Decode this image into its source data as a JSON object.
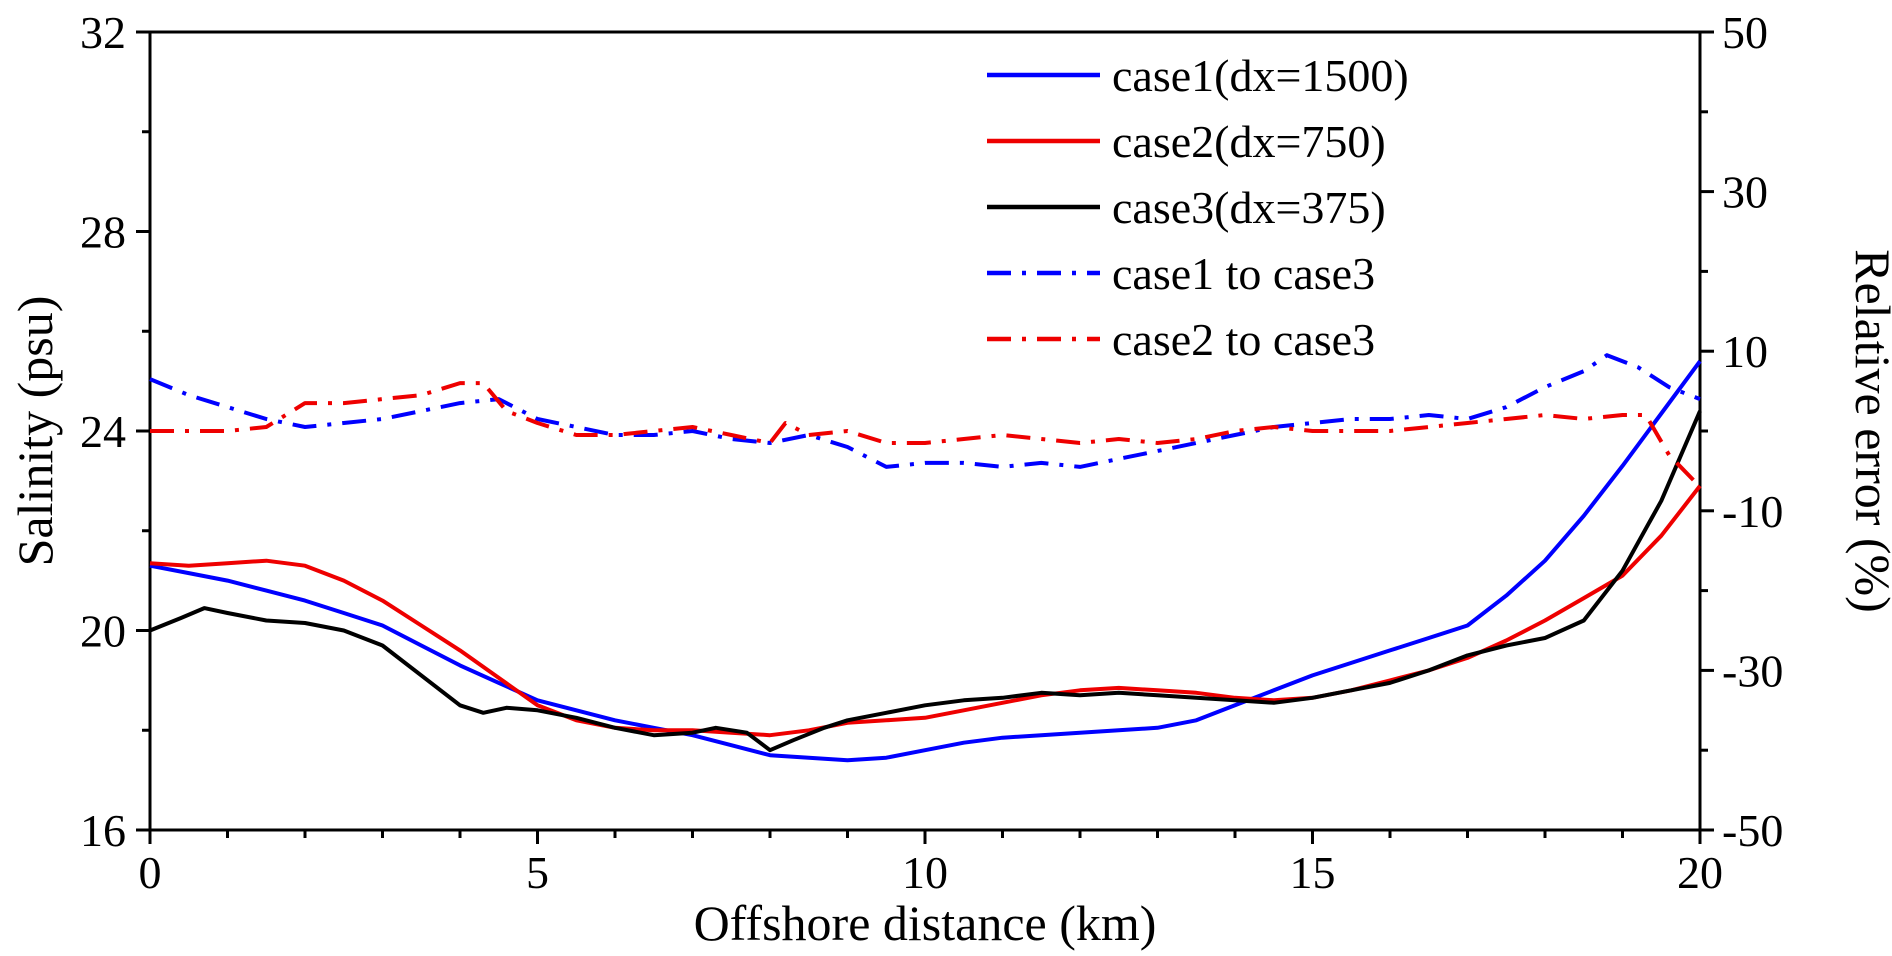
{
  "figure": {
    "background": "#ffffff",
    "border_color": "#000000"
  },
  "chart_data": {
    "type": "line",
    "title": "",
    "xlabel": "Offshore distance (km)",
    "ylabel_left": "Salinity (psu)",
    "ylabel_right": "Relative error (%)",
    "xlim": [
      0,
      20
    ],
    "ylim_left": [
      16,
      32
    ],
    "ylim_right": [
      -50,
      50
    ],
    "xticks": [
      0,
      5,
      10,
      15,
      20
    ],
    "xticks_minor": [
      1,
      2,
      3,
      4,
      6,
      7,
      8,
      9,
      11,
      12,
      13,
      14,
      16,
      17,
      18,
      19
    ],
    "yticks_left": [
      16,
      20,
      24,
      28,
      32
    ],
    "yticks_left_minor": [
      18,
      22,
      26,
      30
    ],
    "yticks_right": [
      -50,
      -30,
      -10,
      10,
      30,
      50
    ],
    "yticks_right_minor": [
      -40,
      -20,
      0,
      20,
      40
    ],
    "grid": false,
    "legend_position": "inside-top-center-right",
    "series": [
      {
        "name": "case1(dx=1500)",
        "axis": "left",
        "color": "#0000ff",
        "style": "solid",
        "x": [
          0,
          0.5,
          1,
          1.5,
          2,
          2.5,
          3,
          3.5,
          4,
          4.5,
          5,
          5.5,
          6,
          6.5,
          7,
          7.5,
          8,
          8.5,
          9,
          9.5,
          10,
          10.5,
          11,
          11.5,
          12,
          12.5,
          13,
          13.5,
          14,
          14.5,
          15,
          15.5,
          16,
          16.5,
          17,
          17.5,
          18,
          18.5,
          19,
          19.5,
          20
        ],
        "y": [
          21.3,
          21.15,
          21.0,
          20.8,
          20.6,
          20.35,
          20.1,
          19.7,
          19.3,
          18.95,
          18.6,
          18.4,
          18.2,
          18.05,
          17.9,
          17.7,
          17.5,
          17.45,
          17.4,
          17.45,
          17.6,
          17.75,
          17.85,
          17.9,
          17.95,
          18.0,
          18.05,
          18.2,
          18.5,
          18.8,
          19.1,
          19.35,
          19.6,
          19.85,
          20.1,
          20.7,
          21.4,
          22.3,
          23.3,
          24.35,
          25.4
        ]
      },
      {
        "name": "case2(dx=750)",
        "axis": "left",
        "color": "#ee0000",
        "style": "solid",
        "x": [
          0,
          0.5,
          1,
          1.5,
          2,
          2.5,
          3,
          3.5,
          4,
          4.5,
          5,
          5.5,
          6,
          6.5,
          7,
          7.5,
          8,
          8.5,
          9,
          9.5,
          10,
          10.5,
          11,
          11.5,
          12,
          12.5,
          13,
          13.5,
          14,
          14.5,
          15,
          15.5,
          16,
          16.5,
          17,
          17.5,
          18,
          18.5,
          19,
          19.5,
          20
        ],
        "y": [
          21.35,
          21.3,
          21.35,
          21.4,
          21.3,
          21.0,
          20.6,
          20.1,
          19.6,
          19.05,
          18.5,
          18.2,
          18.05,
          18.0,
          18.0,
          17.95,
          17.9,
          18.0,
          18.15,
          18.2,
          18.25,
          18.4,
          18.55,
          18.7,
          18.8,
          18.85,
          18.8,
          18.75,
          18.65,
          18.6,
          18.65,
          18.8,
          19.0,
          19.2,
          19.45,
          19.8,
          20.2,
          20.65,
          21.1,
          21.9,
          22.9
        ]
      },
      {
        "name": "case3(dx=375)",
        "axis": "left",
        "color": "#000000",
        "style": "solid",
        "x": [
          0,
          0.4,
          0.7,
          1,
          1.5,
          2,
          2.5,
          3,
          3.5,
          4,
          4.3,
          4.6,
          5,
          5.5,
          6,
          6.5,
          7,
          7.3,
          7.7,
          8,
          8.3,
          8.7,
          9,
          9.5,
          10,
          10.5,
          11,
          11.5,
          12,
          12.5,
          13,
          13.5,
          14,
          14.5,
          15,
          15.5,
          16,
          16.5,
          17,
          17.5,
          18,
          18.5,
          19,
          19.5,
          20
        ],
        "y": [
          20.0,
          20.25,
          20.45,
          20.35,
          20.2,
          20.15,
          20.0,
          19.7,
          19.1,
          18.5,
          18.35,
          18.45,
          18.4,
          18.25,
          18.05,
          17.9,
          17.95,
          18.05,
          17.95,
          17.6,
          17.8,
          18.05,
          18.2,
          18.35,
          18.5,
          18.6,
          18.65,
          18.75,
          18.7,
          18.75,
          18.7,
          18.65,
          18.6,
          18.55,
          18.65,
          18.8,
          18.95,
          19.2,
          19.5,
          19.7,
          19.85,
          20.2,
          21.2,
          22.6,
          24.4
        ]
      },
      {
        "name": "case1 to case3",
        "axis": "right",
        "color": "#0000ff",
        "style": "dashed",
        "x": [
          0,
          0.5,
          1,
          1.5,
          2,
          2.5,
          3,
          3.5,
          4,
          4.5,
          5,
          5.5,
          6,
          6.5,
          7,
          7.5,
          8,
          8.5,
          9,
          9.5,
          10,
          10.5,
          11,
          11.5,
          12,
          12.5,
          13,
          13.5,
          14,
          14.5,
          15,
          15.5,
          16,
          16.5,
          17,
          17.5,
          18,
          18.5,
          18.8,
          19.2,
          19.6,
          20
        ],
        "y": [
          6.5,
          4.5,
          3,
          1.5,
          0.5,
          1,
          1.5,
          2.5,
          3.5,
          4,
          1.5,
          0.5,
          -0.5,
          -0.5,
          0,
          -1,
          -1.5,
          -0.5,
          -2,
          -4.5,
          -4,
          -4,
          -4.5,
          -4,
          -4.5,
          -3.5,
          -2.5,
          -1.5,
          -0.5,
          0.5,
          1,
          1.5,
          1.5,
          2,
          1.5,
          3,
          5.5,
          7.5,
          9.5,
          8,
          5.5,
          4
        ]
      },
      {
        "name": "case2 to case3",
        "axis": "right",
        "color": "#ee0000",
        "style": "dashed",
        "x": [
          0,
          0.5,
          1,
          1.5,
          2,
          2.5,
          3,
          3.5,
          4,
          4.3,
          4.6,
          5,
          5.5,
          6,
          6.5,
          7,
          7.5,
          8,
          8.2,
          8.5,
          9,
          9.5,
          10,
          10.5,
          11,
          11.5,
          12,
          12.5,
          13,
          13.5,
          14,
          14.5,
          15,
          15.5,
          16,
          16.5,
          17,
          17.5,
          18,
          18.5,
          19,
          19.3,
          19.6,
          20
        ],
        "y": [
          0,
          0,
          0,
          0.5,
          3.5,
          3.5,
          4,
          4.5,
          6,
          6,
          2.5,
          1,
          -0.5,
          -0.5,
          0,
          0.5,
          -0.5,
          -1.5,
          1,
          -0.5,
          0,
          -1.5,
          -1.5,
          -1,
          -0.5,
          -1,
          -1.5,
          -1,
          -1.5,
          -1,
          0,
          0.5,
          0,
          0,
          0,
          0.5,
          1,
          1.5,
          2,
          1.5,
          2,
          2,
          -3,
          -7
        ]
      }
    ]
  }
}
